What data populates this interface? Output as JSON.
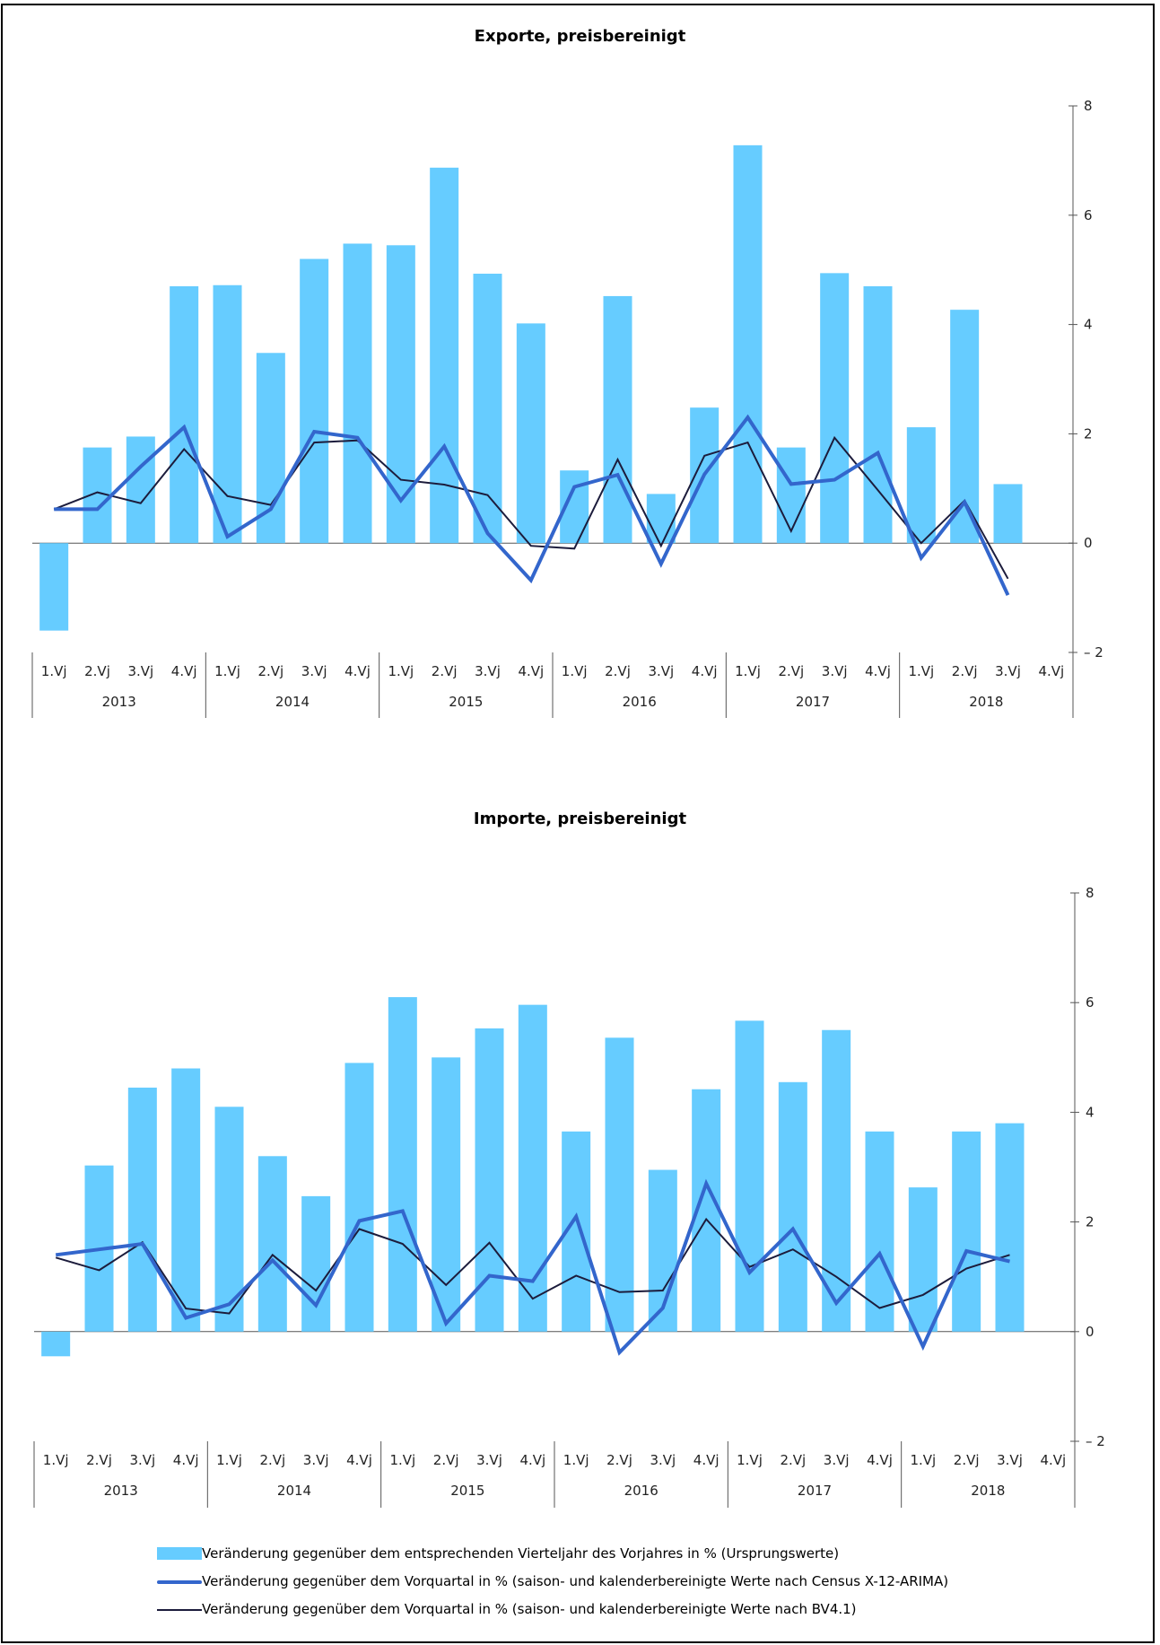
{
  "legend": {
    "yoy": "Veränderung gegenüber dem entsprechenden Vierteljahr des Vorjahres in % (Ursprungswerte)",
    "x12": "Veränderung gegenüber dem Vorquartal in % (saison- und kalenderbereinigte Werte nach Census X-12-ARIMA)",
    "bv41": "Veränderung gegenüber dem Vorquartal in % (saison- und kalenderbereinigte Werte nach BV4.1)"
  },
  "colors": {
    "bars": "#66ccff",
    "x12": "#3366cc",
    "bv41": "#1c1c3c",
    "axis": "#555555"
  },
  "chart_data": [
    {
      "type": "bar",
      "title": "Exporte, preisbereinigt",
      "years": [
        "2013",
        "2014",
        "2015",
        "2016",
        "2017",
        "2018"
      ],
      "quarters": [
        "1.Vj",
        "2.Vj",
        "3.Vj",
        "4.Vj"
      ],
      "ylim": [
        -2,
        8
      ],
      "yticks": [
        "– 2",
        "0",
        "2",
        "4",
        "6",
        "8"
      ],
      "y_axis_position": "right",
      "legend_position": "bottom",
      "series": [
        {
          "name": "Veränderung gegenüber dem entsprechenden Vierteljahr des Vorjahres in % (Ursprungswerte)",
          "type": "bar",
          "values": [
            -1.6,
            1.75,
            1.95,
            4.7,
            4.72,
            3.48,
            5.2,
            5.48,
            5.45,
            6.87,
            4.93,
            4.02,
            1.33,
            4.52,
            0.9,
            2.48,
            7.28,
            1.75,
            4.94,
            4.7,
            2.12,
            4.27,
            1.08,
            null
          ]
        },
        {
          "name": "Veränderung gegenüber dem Vorquartal in % (saison- und kalenderbereinigte Werte nach Census X-12-ARIMA)",
          "type": "line",
          "values": [
            0.62,
            0.62,
            1.4,
            2.12,
            0.12,
            0.62,
            2.04,
            1.93,
            0.78,
            1.77,
            0.18,
            -0.68,
            1.03,
            1.25,
            -0.38,
            1.26,
            2.3,
            1.08,
            1.16,
            1.65,
            -0.27,
            0.75,
            -0.95,
            null
          ]
        },
        {
          "name": "Veränderung gegenüber dem Vorquartal in % (saison- und kalenderbereinigte Werte nach BV4.1)",
          "type": "line",
          "values": [
            0.62,
            0.93,
            0.73,
            1.72,
            0.86,
            0.7,
            1.84,
            1.88,
            1.16,
            1.07,
            0.88,
            -0.05,
            -0.1,
            1.53,
            -0.05,
            1.6,
            1.84,
            0.22,
            1.93,
            0.97,
            0.0,
            0.78,
            -0.65,
            null
          ]
        }
      ]
    },
    {
      "type": "bar",
      "title": "Importe, preisbereinigt",
      "years": [
        "2013",
        "2014",
        "2015",
        "2016",
        "2017",
        "2018"
      ],
      "quarters": [
        "1.Vj",
        "2.Vj",
        "3.Vj",
        "4.Vj"
      ],
      "ylim": [
        -2,
        8
      ],
      "yticks": [
        "– 2",
        "0",
        "2",
        "4",
        "6",
        "8"
      ],
      "y_axis_position": "right",
      "legend_position": "bottom",
      "series": [
        {
          "name": "Veränderung gegenüber dem entsprechenden Vierteljahr des Vorjahres in % (Ursprungswerte)",
          "type": "bar",
          "values": [
            -0.45,
            3.03,
            4.45,
            4.8,
            4.1,
            3.2,
            2.47,
            4.9,
            6.1,
            5.0,
            5.53,
            5.96,
            3.65,
            5.36,
            2.95,
            4.42,
            5.67,
            4.55,
            5.5,
            3.65,
            2.63,
            3.65,
            3.8,
            null
          ]
        },
        {
          "name": "Veränderung gegenüber dem Vorquartal in % (saison- und kalenderbereinigte Werte nach Census X-12-ARIMA)",
          "type": "line",
          "values": [
            1.4,
            1.5,
            1.6,
            0.25,
            0.5,
            1.3,
            0.48,
            2.02,
            2.2,
            0.15,
            1.02,
            0.92,
            2.1,
            -0.38,
            0.43,
            2.7,
            1.08,
            1.87,
            0.52,
            1.42,
            -0.27,
            1.47,
            1.28,
            null
          ]
        },
        {
          "name": "Veränderung gegenüber dem Vorquartal in % (saison- und kalenderbereinigte Werte nach BV4.1)",
          "type": "line",
          "values": [
            1.35,
            1.12,
            1.63,
            0.42,
            0.33,
            1.4,
            0.75,
            1.87,
            1.6,
            0.85,
            1.62,
            0.6,
            1.02,
            0.72,
            0.75,
            2.05,
            1.18,
            1.5,
            1.0,
            0.43,
            0.67,
            1.15,
            1.4,
            null
          ]
        }
      ]
    }
  ]
}
